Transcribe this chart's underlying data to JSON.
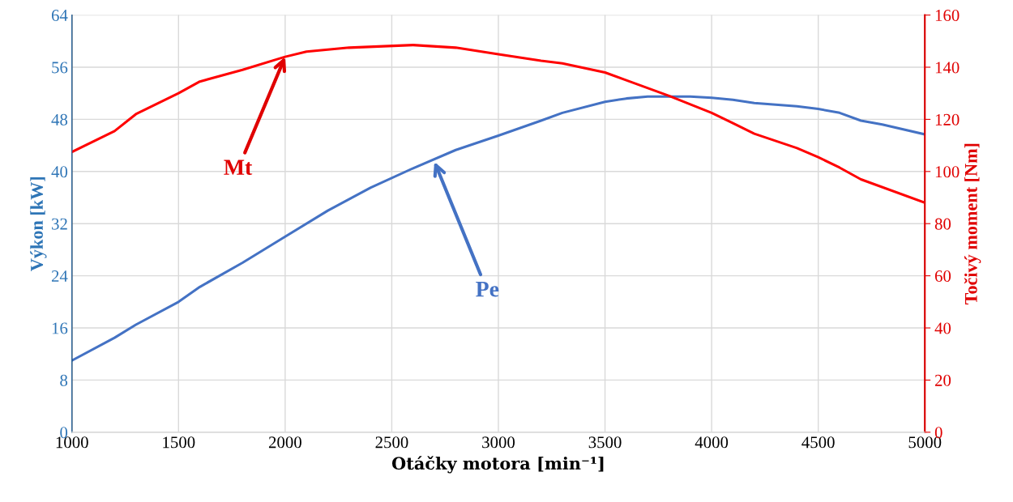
{
  "chart_data": {
    "type": "line",
    "xlabel": "Otáčky motora [min⁻¹]",
    "ylabel": "Výkon [kW]",
    "y2label": "Točivý moment [Nm]",
    "xlim": [
      1000,
      5000
    ],
    "xticks": [
      1000,
      1500,
      2000,
      2500,
      3000,
      3500,
      4000,
      4500,
      5000
    ],
    "ylim": [
      0,
      64
    ],
    "yticks": [
      0,
      8,
      16,
      24,
      32,
      40,
      48,
      56,
      64
    ],
    "y2lim": [
      0,
      160
    ],
    "y2ticks": [
      0,
      20,
      40,
      60,
      80,
      100,
      120,
      140,
      160
    ],
    "grid": true,
    "marker": "none",
    "line_style": "solid",
    "series": [
      {
        "color": "#4472c4",
        "x": [
          1000,
          1200,
          1300,
          1500,
          1600,
          1800,
          2000,
          2200,
          2400,
          2600,
          2800,
          3000,
          3200,
          3300,
          3500,
          3600,
          3700,
          3900,
          4000,
          4100,
          4200,
          4400,
          4500,
          4600,
          4700,
          4800,
          5000
        ],
        "values": [
          11,
          14.5,
          16.5,
          20,
          22.3,
          26,
          30,
          34,
          37.5,
          40.5,
          43.3,
          45.5,
          47.8,
          49,
          50.7,
          51.2,
          51.5,
          51.5,
          51.3,
          51,
          50.5,
          50,
          49.6,
          49,
          47.8,
          47.2,
          45.7
        ]
      },
      {
        "color": "#ff0000",
        "axis": "y2",
        "x": [
          1000,
          1200,
          1300,
          1500,
          1600,
          1800,
          2000,
          2100,
          2300,
          2600,
          2800,
          3000,
          3200,
          3300,
          3500,
          3600,
          3800,
          4000,
          4100,
          4200,
          4400,
          4500,
          4600,
          4700,
          5000
        ],
        "values": [
          107.5,
          115.5,
          122,
          130,
          134.5,
          139,
          144,
          146,
          147.5,
          148.5,
          147.5,
          145,
          142.5,
          141.5,
          138,
          135,
          129,
          122.5,
          118.5,
          114.5,
          109,
          105.5,
          101.5,
          97,
          88
        ]
      }
    ],
    "annotations": [
      {
        "text": "Mt",
        "x": 2000,
        "y": 57.6
      },
      {
        "text": "Pe",
        "x": 2700,
        "y": 41.5
      }
    ]
  }
}
